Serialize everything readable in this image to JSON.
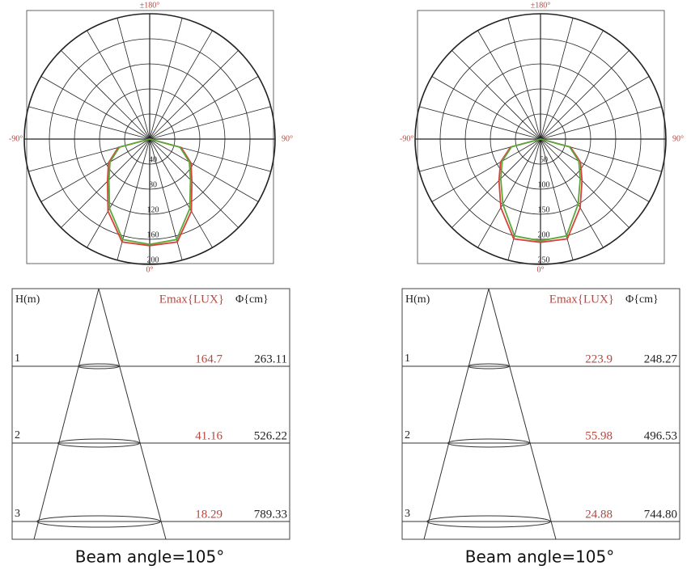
{
  "chart_data": [
    {
      "type": "polar",
      "angle_labels": [
        "±180°",
        "-90°",
        "90°",
        "0°"
      ],
      "x": [
        -90,
        -75,
        -60,
        -45,
        -30,
        -15,
        0,
        15,
        30,
        45,
        60,
        75,
        90
      ],
      "rlim": [
        0,
        200
      ],
      "rticks": [
        40,
        80,
        120,
        160,
        200
      ],
      "series": [
        {
          "color": "#d9413a",
          "values": [
            0,
            52,
            76,
            95,
            133,
            170,
            170,
            170,
            133,
            95,
            76,
            52,
            0
          ]
        },
        {
          "color": "#5aa83a",
          "values": [
            0,
            50,
            73,
            92,
            128,
            166,
            168,
            166,
            128,
            92,
            73,
            50,
            0
          ]
        }
      ]
    },
    {
      "type": "polar",
      "angle_labels": [
        "±180°",
        "-90°",
        "90°",
        "0°"
      ],
      "x": [
        -90,
        -75,
        -60,
        -45,
        -30,
        -15,
        0,
        15,
        30,
        45,
        60,
        75,
        90
      ],
      "rlim": [
        0,
        250
      ],
      "rticks": [
        50,
        100,
        150,
        200,
        250
      ],
      "series": [
        {
          "color": "#d9413a",
          "values": [
            0,
            62,
            92,
            117,
            158,
            206,
            206,
            206,
            158,
            117,
            92,
            62,
            0
          ]
        },
        {
          "color": "#5aa83a",
          "values": [
            0,
            60,
            88,
            112,
            150,
            200,
            203,
            200,
            150,
            112,
            88,
            60,
            0
          ]
        }
      ]
    }
  ],
  "beam_tables": [
    {
      "headers": [
        "H(m)",
        "Emax{LUX}",
        "Φ{cm}"
      ],
      "rows": [
        [
          "1",
          "164.7",
          "263.11"
        ],
        [
          "2",
          "41.16",
          "526.22"
        ],
        [
          "3",
          "18.29",
          "789.33"
        ]
      ],
      "caption": "Beam angle=105°"
    },
    {
      "headers": [
        "H(m)",
        "Emax{LUX}",
        "Φ{cm}"
      ],
      "rows": [
        [
          "1",
          "223.9",
          "248.27"
        ],
        [
          "2",
          "55.98",
          "496.53"
        ],
        [
          "3",
          "24.88",
          "744.80"
        ]
      ],
      "caption": "Beam angle=105°"
    }
  ]
}
